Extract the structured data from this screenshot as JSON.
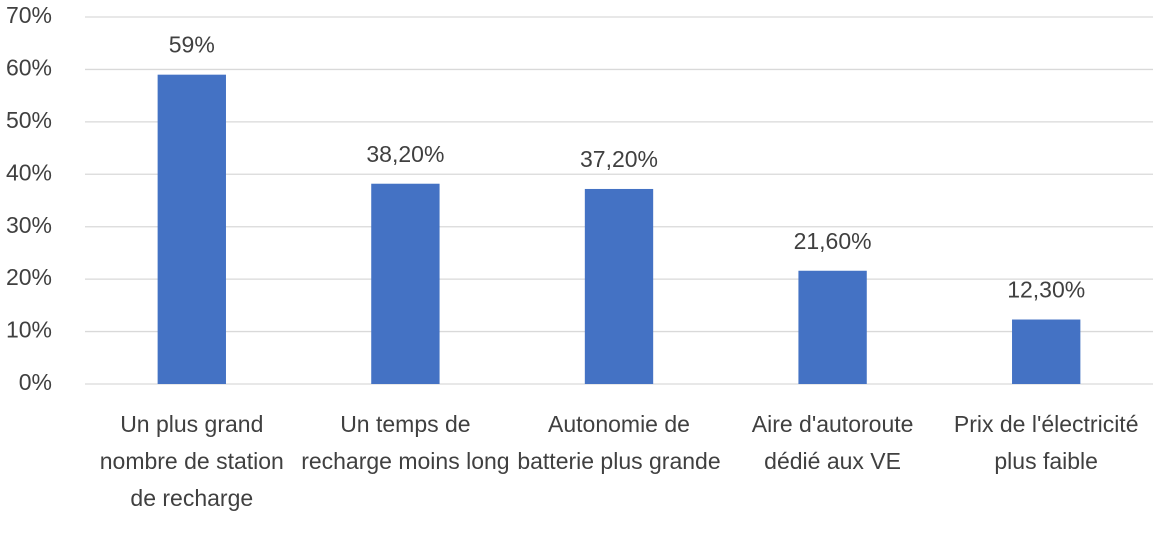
{
  "chart_data": {
    "type": "bar",
    "categories": [
      "Un plus grand nombre de station de recharge",
      "Un temps de recharge moins long",
      "Autonomie de batterie plus grande",
      "Aire d'autoroute dédié aux VE",
      "Prix de l'électricité plus faible"
    ],
    "values": [
      59,
      38.2,
      37.2,
      21.6,
      12.3
    ],
    "value_labels": [
      "59%",
      "38,20%",
      "37,20%",
      "21,60%",
      "12,30%"
    ],
    "color": "#4472c4",
    "ylim": [
      0,
      70
    ],
    "yticks": [
      {
        "value": 0,
        "label": "0%"
      },
      {
        "value": 10,
        "label": "10%"
      },
      {
        "value": 20,
        "label": "20%"
      },
      {
        "value": 30,
        "label": "30%"
      },
      {
        "value": 40,
        "label": "40%"
      },
      {
        "value": 50,
        "label": "50%"
      },
      {
        "value": 60,
        "label": "60%"
      },
      {
        "value": 70,
        "label": "70%"
      }
    ],
    "grid": true
  }
}
